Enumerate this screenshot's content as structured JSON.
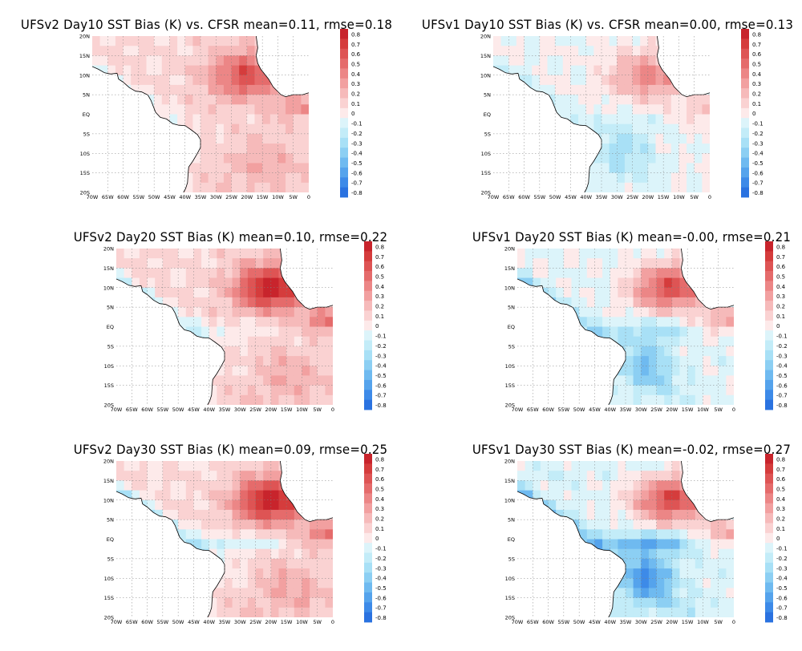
{
  "figure": {
    "panels": [
      {
        "title": "UFSv2 Day10 SST Bias (K) vs. CFSR mean=0.11, rmse=0.18",
        "mean": 0.11,
        "rmse": 0.18,
        "patterns": {
          "warm_ne": 0.55,
          "cold_se": 0.0,
          "warm_south": 0.18,
          "coast_cold": 0.15,
          "eq_tongue": 0.0,
          "bg": 0.12
        }
      },
      {
        "title": "UFSv1 Day10 SST Bias (K) vs. CFSR mean=0.00, rmse=0.13",
        "mean": 0.0,
        "rmse": 0.13,
        "patterns": {
          "warm_ne": 0.45,
          "cold_se": 0.25,
          "warm_south": 0.0,
          "coast_cold": 0.12,
          "eq_tongue": 0.05,
          "bg": 0.0
        }
      },
      {
        "title": "UFSv2 Day20 SST Bias (K) mean=0.10, rmse=0.22",
        "mean": 0.1,
        "rmse": 0.22,
        "patterns": {
          "warm_ne": 0.75,
          "cold_se": 0.0,
          "warm_south": 0.2,
          "coast_cold": 0.3,
          "eq_tongue": 0.12,
          "bg": 0.12
        }
      },
      {
        "title": "UFSv1 Day20 SST Bias (K) mean=-0.00, rmse=0.21",
        "mean": 0.0,
        "rmse": 0.21,
        "patterns": {
          "warm_ne": 0.7,
          "cold_se": 0.35,
          "warm_south": 0.0,
          "coast_cold": 0.3,
          "eq_tongue": 0.2,
          "bg": -0.02
        }
      },
      {
        "title": "UFSv2 Day30 SST Bias (K) mean=0.09, rmse=0.25",
        "mean": 0.09,
        "rmse": 0.25,
        "patterns": {
          "warm_ne": 0.8,
          "cold_se": 0.0,
          "warm_south": 0.25,
          "coast_cold": 0.38,
          "eq_tongue": 0.2,
          "bg": 0.1
        }
      },
      {
        "title": "UFSv1 Day30 SST Bias (K) mean=-0.02, rmse=0.27",
        "mean": -0.02,
        "rmse": 0.27,
        "patterns": {
          "warm_ne": 0.75,
          "cold_se": 0.5,
          "warm_south": 0.0,
          "coast_cold": 0.4,
          "eq_tongue": 0.45,
          "bg": -0.05
        }
      }
    ],
    "lat_labels": [
      "20N",
      "15N",
      "10N",
      "5N",
      "EQ",
      "5S",
      "10S",
      "15S",
      "20S"
    ],
    "lon_labels": [
      "70W",
      "65W",
      "60W",
      "55W",
      "50W",
      "45W",
      "40W",
      "35W",
      "30W",
      "25W",
      "20W",
      "15W",
      "10W",
      "5W",
      "0"
    ],
    "colorbar": {
      "labels": [
        "0.8",
        "0.7",
        "0.6",
        "0.5",
        "0.4",
        "0.3",
        "0.2",
        "0.1",
        "0",
        "-0.1",
        "-0.2",
        "-0.3",
        "-0.4",
        "-0.5",
        "-0.6",
        "-0.7",
        "-0.8"
      ],
      "colors": [
        "#c8242c",
        "#d53c3c",
        "#de5454",
        "#e56b6b",
        "#ec8686",
        "#f2a0a0",
        "#f6baba",
        "#fad2d2",
        "#fdeaea",
        "#dcf4fa",
        "#c3ecf8",
        "#a8e0f6",
        "#8ccff3",
        "#6fbaf0",
        "#55a3ec",
        "#3d8ae8",
        "#2a72e0"
      ]
    },
    "colors": {
      "land": "#ffffff",
      "coast": "#000000",
      "grid": "#808080",
      "equator": "#000000"
    }
  }
}
